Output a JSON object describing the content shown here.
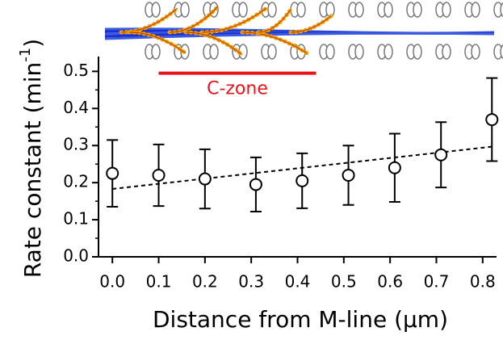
{
  "chart_data": {
    "type": "scatter",
    "xlabel": "Distance from M-line (μm)",
    "ylabel": {
      "text": "Rate constant (min",
      "superscript": "-1",
      "suffix": ")"
    },
    "x": [
      0.0,
      0.1,
      0.2,
      0.31,
      0.41,
      0.51,
      0.61,
      0.71,
      0.82
    ],
    "values": [
      0.225,
      0.22,
      0.21,
      0.195,
      0.205,
      0.22,
      0.24,
      0.275,
      0.37
    ],
    "error": [
      0.09,
      0.083,
      0.08,
      0.073,
      0.074,
      0.08,
      0.092,
      0.088,
      0.112
    ],
    "color": "#000000",
    "trend_line": {
      "x": [
        0.0,
        0.82
      ],
      "values": [
        0.183,
        0.297
      ]
    },
    "annotation": {
      "text": "C-zone",
      "x_range": [
        0.1,
        0.44
      ],
      "y": 0.495,
      "color": "#e8141b"
    },
    "xlim": [
      -0.03,
      0.83
    ],
    "ylim": [
      0,
      0.54
    ],
    "xticks": [
      {
        "value": 0,
        "label": "0.0"
      },
      0.1,
      0.2,
      0.3,
      0.4,
      0.5,
      0.6,
      0.7,
      0.8
    ],
    "yticks": [
      {
        "value": 0,
        "label": "0.0"
      },
      0.1,
      0.2,
      0.3,
      0.4,
      0.5
    ],
    "yminor_ticks": [
      0.05,
      0.15,
      0.25,
      0.35,
      0.45
    ]
  }
}
